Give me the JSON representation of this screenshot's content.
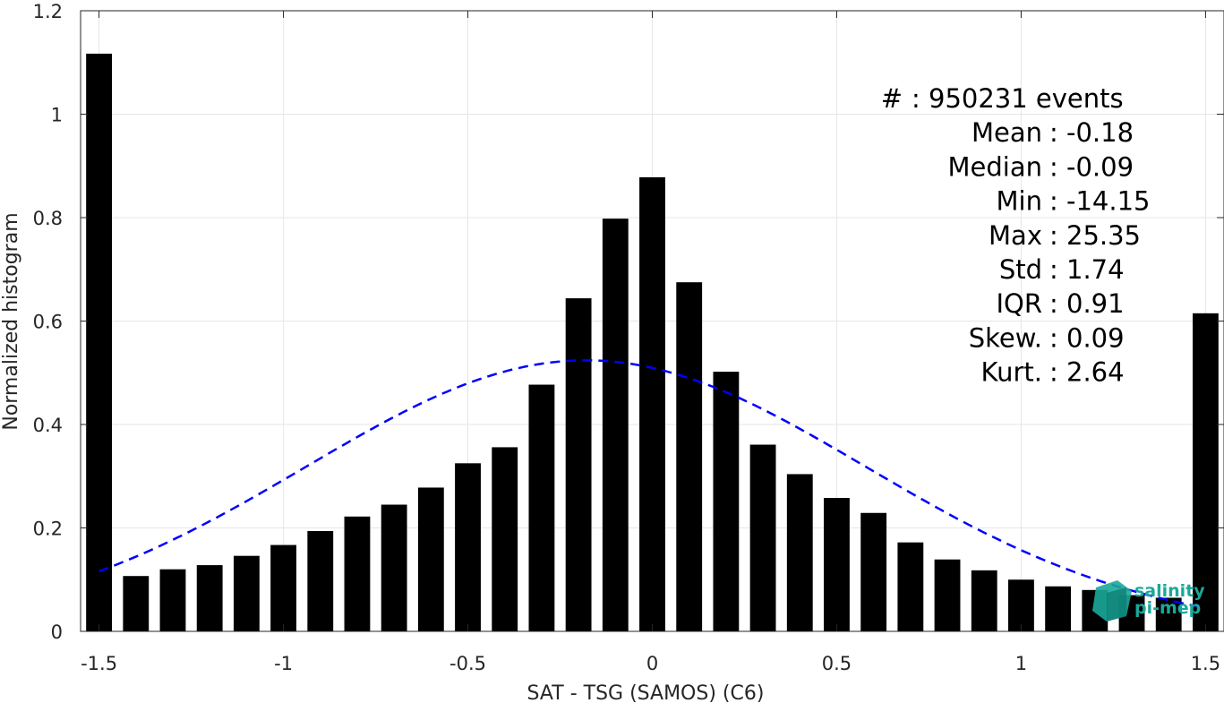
{
  "chart_data": {
    "type": "bar",
    "xlabel": "SAT - TSG (SAMOS) (C6)",
    "ylabel": "Normalized histogram",
    "xlim": [
      -1.55,
      1.55
    ],
    "ylim": [
      0,
      1.2
    ],
    "xticks": [
      "-1.5",
      "-1",
      "-0.5",
      "0",
      "0.5",
      "1",
      "1.5"
    ],
    "xtick_values": [
      -1.5,
      -1,
      -0.5,
      0,
      0.5,
      1,
      1.5
    ],
    "yticks": [
      "0",
      "0.2",
      "0.4",
      "0.6",
      "0.8",
      "1",
      "1.2"
    ],
    "ytick_values": [
      0,
      0.2,
      0.4,
      0.6,
      0.8,
      1.0,
      1.2
    ],
    "grid": true,
    "bar_width": 0.07,
    "x": [
      -1.5,
      -1.4,
      -1.3,
      -1.2,
      -1.1,
      -1.0,
      -0.9,
      -0.8,
      -0.7,
      -0.6,
      -0.5,
      -0.4,
      -0.3,
      -0.2,
      -0.1,
      0.0,
      0.1,
      0.2,
      0.3,
      0.4,
      0.5,
      0.6,
      0.7,
      0.8,
      0.9,
      1.0,
      1.1,
      1.2,
      1.3,
      1.4,
      1.5
    ],
    "values": [
      1.117,
      0.107,
      0.12,
      0.128,
      0.146,
      0.167,
      0.194,
      0.222,
      0.245,
      0.278,
      0.325,
      0.356,
      0.477,
      0.644,
      0.798,
      0.878,
      0.675,
      0.502,
      0.361,
      0.304,
      0.258,
      0.229,
      0.172,
      0.139,
      0.118,
      0.1,
      0.087,
      0.08,
      0.07,
      0.065,
      0.615
    ],
    "bar_color": "#000000",
    "fit_curve": {
      "style": "dashed",
      "color": "#0000ff",
      "distribution": "normal",
      "mean": -0.18,
      "std": 0.76,
      "x_range": [
        -1.5,
        1.5
      ]
    },
    "annotations": [
      "#  : 950231 events",
      "Mean : -0.18",
      "Median : -0.09",
      "Min : -14.15",
      "Max : 25.35",
      "Std : 1.74",
      "IQR : 0.91",
      "Skew. : 0.09",
      "Kurt. : 2.64"
    ]
  },
  "logo": {
    "line1": "salinity",
    "line2": "pi-mep",
    "color": "#1aa89a"
  }
}
